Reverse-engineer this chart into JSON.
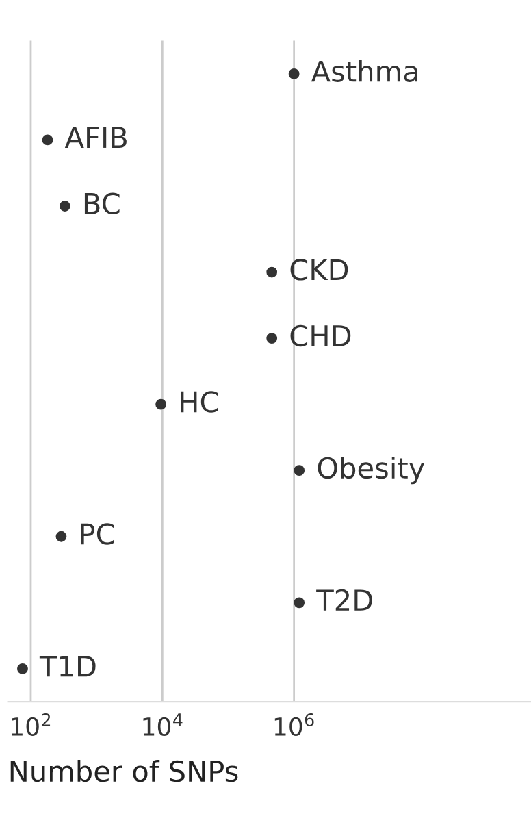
{
  "chart_data": {
    "type": "scatter",
    "orientation": "horizontal",
    "xlabel": "Number of SNPs",
    "categories": [
      "Asthma",
      "AFIB",
      "BC",
      "CKD",
      "CHD",
      "HC",
      "Obesity",
      "PC",
      "T2D",
      "T1D"
    ],
    "series": [
      {
        "color": "#333333",
        "values": [
          1000000,
          180,
          330,
          460000,
          460000,
          9500,
          1200000,
          290,
          1200000,
          75
        ]
      }
    ],
    "log": "x",
    "xlim": [
      45,
      4000000000
    ],
    "xticks": [
      {
        "value": 100,
        "label": "10$^{2}$"
      },
      {
        "value": 10000,
        "label": "10$^{4}$"
      },
      {
        "value": 1000000,
        "label": "10$^{6}$"
      }
    ],
    "grid": "x",
    "marker": "circle",
    "legend": false
  }
}
